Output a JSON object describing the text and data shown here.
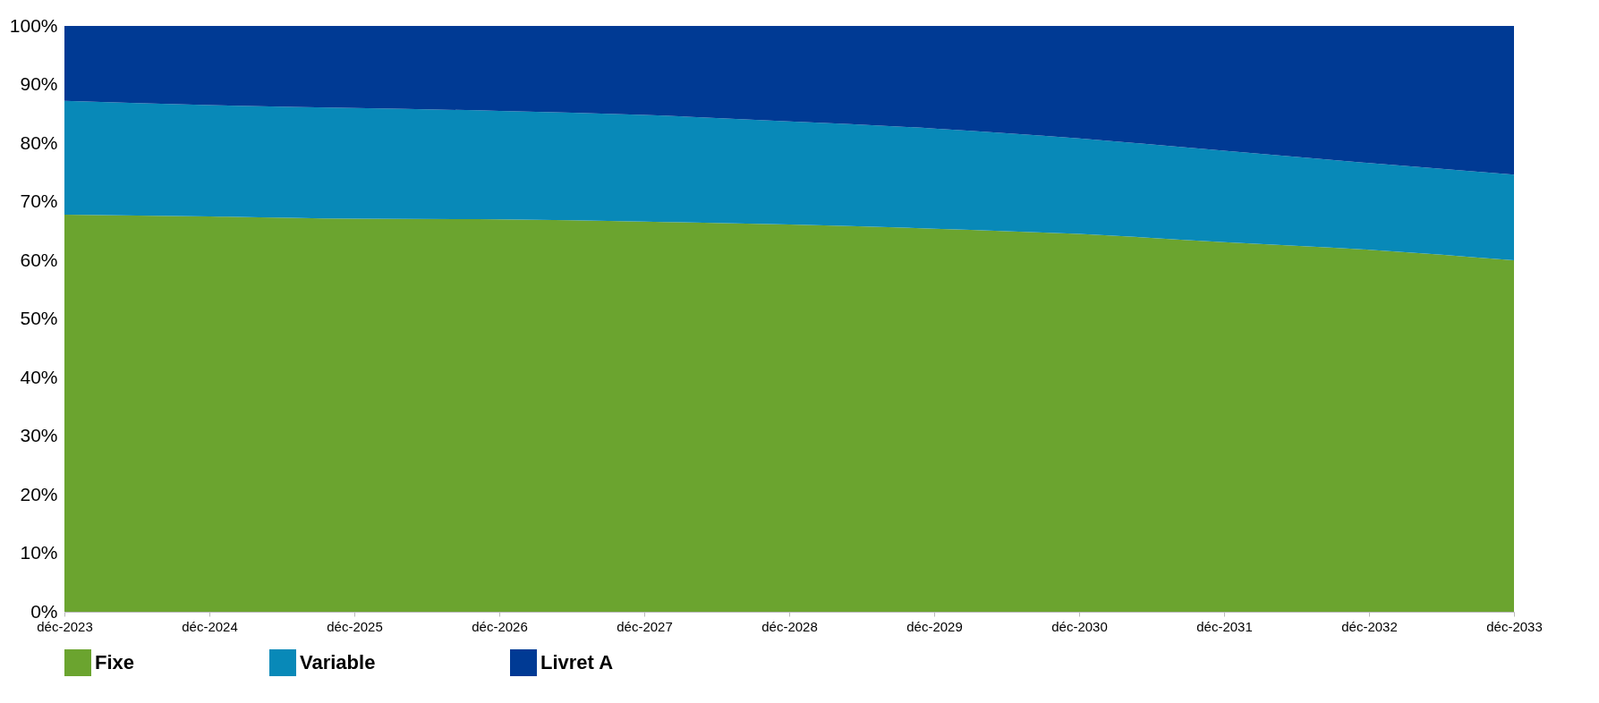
{
  "chart_data": {
    "type": "area",
    "stacked": true,
    "categories": [
      "déc-2023",
      "déc-2024",
      "déc-2025",
      "déc-2026",
      "déc-2027",
      "déc-2028",
      "déc-2029",
      "déc-2030",
      "déc-2031",
      "déc-2032",
      "déc-2033"
    ],
    "series": [
      {
        "name": "Fixe",
        "color": "#6ba42f",
        "values": [
          67.8,
          67.5,
          67.1,
          67.0,
          66.6,
          66.1,
          65.4,
          64.5,
          63.1,
          61.8,
          60.0
        ]
      },
      {
        "name": "Variable",
        "color": "#0889b8",
        "values": [
          19.4,
          19.0,
          18.9,
          18.5,
          18.2,
          17.6,
          17.1,
          16.3,
          15.6,
          14.8,
          14.6
        ]
      },
      {
        "name": "Livret A",
        "color": "#003a94",
        "values": [
          12.8,
          13.5,
          14.0,
          14.5,
          15.2,
          16.3,
          17.5,
          19.2,
          21.3,
          23.4,
          25.4
        ]
      }
    ],
    "ylim": [
      0,
      100
    ],
    "yticks": [
      {
        "value": 0,
        "label": "0%"
      },
      {
        "value": 10,
        "label": "10%"
      },
      {
        "value": 20,
        "label": "20%"
      },
      {
        "value": 30,
        "label": "30%"
      },
      {
        "value": 40,
        "label": "40%"
      },
      {
        "value": 50,
        "label": "50%"
      },
      {
        "value": 60,
        "label": "60%"
      },
      {
        "value": 70,
        "label": "70%"
      },
      {
        "value": 80,
        "label": "80%"
      },
      {
        "value": 90,
        "label": "90%"
      },
      {
        "value": 100,
        "label": "100%"
      }
    ],
    "grid": false,
    "legend": "bottom"
  }
}
